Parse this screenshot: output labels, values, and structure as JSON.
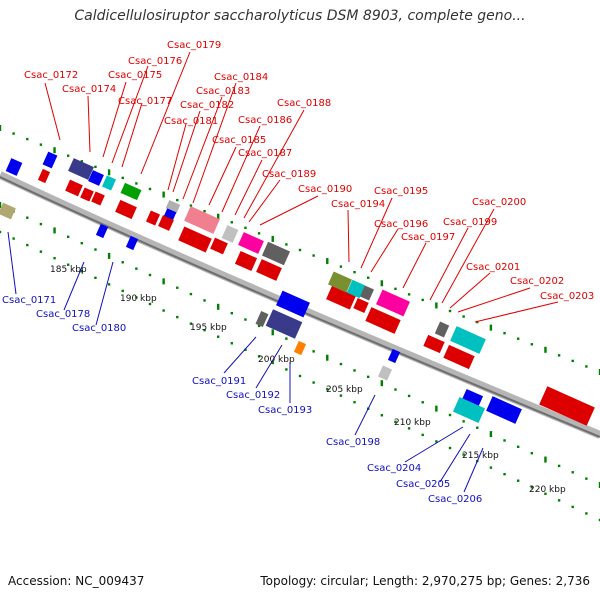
{
  "title": "Caldicellulosiruptor saccharolyticus DSM 8903, complete geno...",
  "footer": {
    "accession": "Accession: NC_009437",
    "topology": "Topology: circular; Length: 2,970,275 bp; Genes: 2,736"
  },
  "colors": {
    "forward_label": "#e00000",
    "reverse_label": "#1010c0",
    "backbone": "#8a8a8a",
    "tick_dots": "#008000"
  },
  "ruler_ticks": [
    "185 kbp",
    "190 kbp",
    "195 kbp",
    "200 kbp",
    "205 kbp",
    "210 kbp",
    "215 kbp",
    "220 kbp"
  ],
  "forward_gene_labels": [
    "Csac_0172",
    "Csac_0174",
    "Csac_0175",
    "Csac_0176",
    "Csac_0177",
    "Csac_0179",
    "Csac_0181",
    "Csac_0182",
    "Csac_0183",
    "Csac_0184",
    "Csac_0185",
    "Csac_0186",
    "Csac_0187",
    "Csac_0188",
    "Csac_0189",
    "Csac_0190",
    "Csac_0194",
    "Csac_0195",
    "Csac_0196",
    "Csac_0197",
    "Csac_0199",
    "Csac_0200",
    "Csac_0201",
    "Csac_0202",
    "Csac_0203"
  ],
  "reverse_gene_labels": [
    "Csac_0171",
    "Csac_0178",
    "Csac_0180",
    "Csac_0191",
    "Csac_0192",
    "Csac_0193",
    "Csac_0198",
    "Csac_0204",
    "Csac_0205",
    "Csac_0206"
  ]
}
